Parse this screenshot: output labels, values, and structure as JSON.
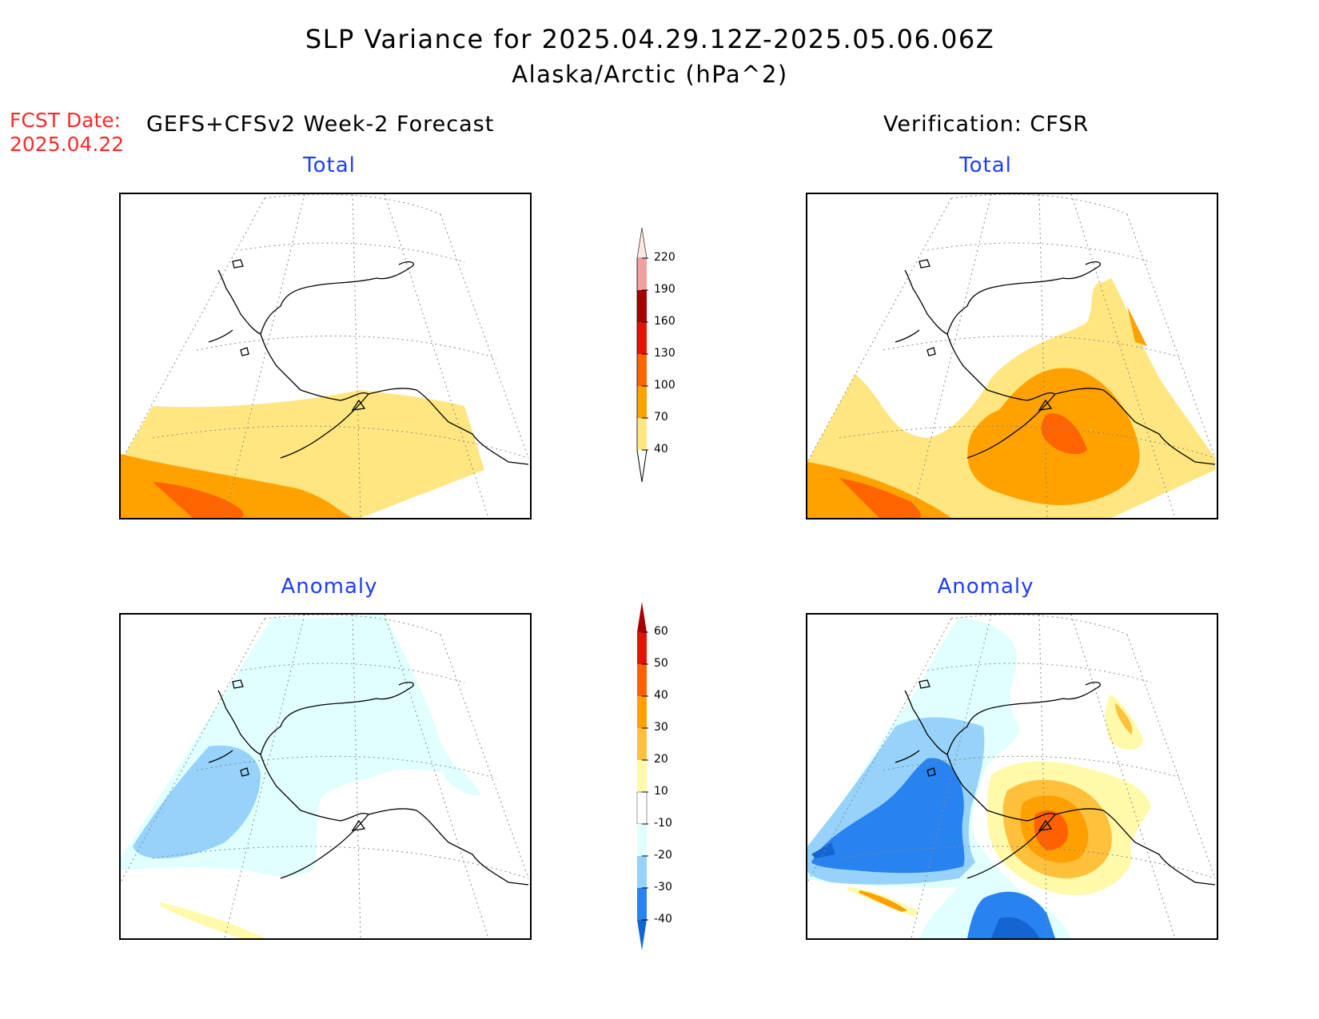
{
  "header": {
    "title": "SLP Variance for 2025.04.29.12Z-2025.05.06.06Z",
    "subtitle": "Alaska/Arctic (hPa^2)",
    "fcst_date_label": "FCST Date:",
    "fcst_date_value": "2025.04.22",
    "left_column": "GEFS+CFSv2 Week-2 Forecast",
    "right_column": "Verification: CFSR"
  },
  "panels": {
    "forecast_total": {
      "title": "Total"
    },
    "verification_total": {
      "title": "Total"
    },
    "forecast_anomaly": {
      "title": "Anomaly"
    },
    "verification_anomaly": {
      "title": "Anomaly"
    }
  },
  "colorbars": {
    "total": {
      "labels": [
        "40",
        "70",
        "100",
        "130",
        "160",
        "190",
        "220"
      ],
      "colors": [
        "#ffe680",
        "#ffa200",
        "#ff6400",
        "#e11400",
        "#a50000",
        "#f0a0a0",
        "#fde8e0"
      ]
    },
    "anomaly": {
      "labels": [
        "-40",
        "-30",
        "-20",
        "-10",
        "10",
        "20",
        "30",
        "40",
        "50",
        "60"
      ],
      "colors": [
        "#1464d2",
        "#2882f0",
        "#96d2fa",
        "#e1ffff",
        "#ffffff",
        "#fffaaa",
        "#ffc03c",
        "#ffa000",
        "#ff6000",
        "#e11400",
        "#a50000"
      ]
    }
  },
  "style": {
    "title_color": "#000000",
    "panel_title_color": "#1f3cff",
    "fcst_date_color": "#ff2a2a"
  }
}
